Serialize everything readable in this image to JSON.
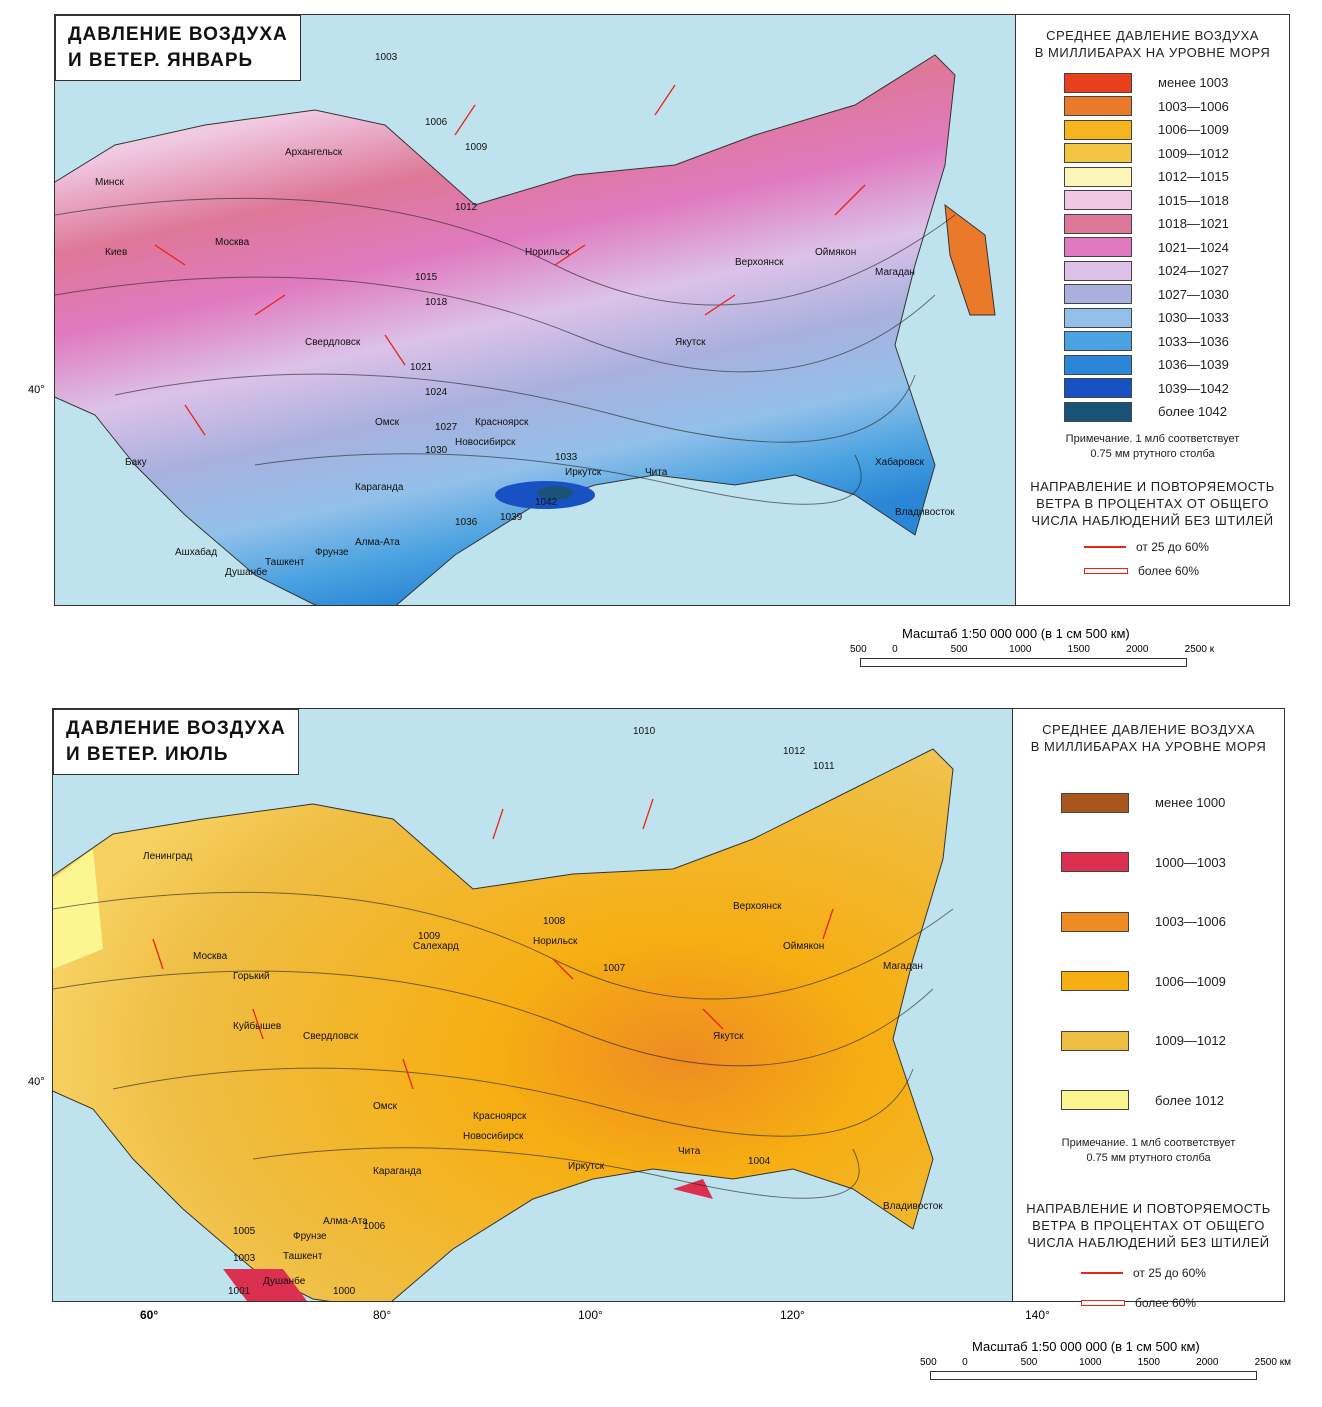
{
  "january": {
    "title_line1": "ДАВЛЕНИЕ ВОЗДУХА",
    "title_line2": "И ВЕТЕР. ЯНВАРЬ",
    "legend_title_line1": "СРЕДНЕЕ ДАВЛЕНИЕ ВОЗДУХА",
    "legend_title_line2": "В МИЛЛИБАРАХ НА УРОВНЕ МОРЯ",
    "legend": [
      {
        "label": "менее 1003",
        "color": "#e8401c"
      },
      {
        "label": "1003—1006",
        "color": "#ea7a2a"
      },
      {
        "label": "1006—1009",
        "color": "#f6b41e"
      },
      {
        "label": "1009—1012",
        "color": "#f2c441"
      },
      {
        "label": "1012—1015",
        "color": "#fbf6b8"
      },
      {
        "label": "1015—1018",
        "color": "#f0c8e2"
      },
      {
        "label": "1018—1021",
        "color": "#de7898"
      },
      {
        "label": "1021—1024",
        "color": "#e07ac0"
      },
      {
        "label": "1024—1027",
        "color": "#dcc2e8"
      },
      {
        "label": "1027—1030",
        "color": "#a9b0de"
      },
      {
        "label": "1030—1033",
        "color": "#92c0ea"
      },
      {
        "label": "1033—1036",
        "color": "#4aa2e0"
      },
      {
        "label": "1036—1039",
        "color": "#2a86d6"
      },
      {
        "label": "1039—1042",
        "color": "#1852c2"
      },
      {
        "label": "более 1042",
        "color": "#1a5278"
      }
    ],
    "note_line1": "Примечание. 1 млб соответствует",
    "note_line2": "0.75 мм ртутного столба",
    "wind_title_line1": "НАПРАВЛЕНИЕ И ПОВТОРЯЕМОСТЬ",
    "wind_title_line2": "ВЕТРА В ПРОЦЕНТАХ ОТ ОБЩЕГО",
    "wind_title_line3": "ЧИСЛА НАБЛЮДЕНИЙ БЕЗ ШТИЛЕЙ",
    "wind": [
      "от 25 до 60%",
      "более 60%"
    ],
    "cities": [
      "Москва",
      "Минск",
      "Киев",
      "Омск",
      "Новосибирск",
      "Красноярск",
      "Иркутск",
      "Чита",
      "Якутск",
      "Верхоянск",
      "Оймякон",
      "Магадан",
      "Хабаровск",
      "Владивосток",
      "Караганда",
      "Ташкент",
      "Фрунзе",
      "Алма-Ата",
      "Свердловск",
      "Архангельск",
      "Норильск",
      "Баку",
      "Ашхабад",
      "Душанбе"
    ],
    "isobars": [
      "1003",
      "1006",
      "1009",
      "1012",
      "1015",
      "1018",
      "1021",
      "1024",
      "1027",
      "1030",
      "1033",
      "1036",
      "1039",
      "1042"
    ],
    "lat_label": "40°",
    "scale": {
      "label": "Масштаб 1:50 000 000 (в 1 см 500 км)",
      "ticks": [
        "500",
        "0",
        "500",
        "1000",
        "1500",
        "2000",
        "2500 к"
      ]
    }
  },
  "july": {
    "title_line1": "ДАВЛЕНИЕ ВОЗДУХА",
    "title_line2": "И ВЕТЕР. ИЮЛЬ",
    "legend_title_line1": "СРЕДНЕЕ ДАВЛЕНИЕ ВОЗДУХА",
    "legend_title_line2": "В МИЛЛИБАРАХ НА УРОВНЕ МОРЯ",
    "legend": [
      {
        "label": "менее 1000",
        "color": "#a9561c"
      },
      {
        "label": "1000—1003",
        "color": "#dc3050"
      },
      {
        "label": "1003—1006",
        "color": "#ee8c22"
      },
      {
        "label": "1006—1009",
        "color": "#f6ae12"
      },
      {
        "label": "1009—1012",
        "color": "#efbe44"
      },
      {
        "label": "более 1012",
        "color": "#fbf690"
      }
    ],
    "note_line1": "Примечание. 1 млб соответствует",
    "note_line2": "0.75 мм ртутного столба",
    "wind_title_line1": "НАПРАВЛЕНИЕ И ПОВТОРЯЕМОСТЬ",
    "wind_title_line2": "ВЕТРА В ПРОЦЕНТАХ ОТ ОБЩЕГО",
    "wind_title_line3": "ЧИСЛА НАБЛЮДЕНИЙ БЕЗ ШТИЛЕЙ",
    "wind": [
      "от 25 до 60%",
      "более 60%"
    ],
    "cities": [
      "Москва",
      "Ленинград",
      "Горький",
      "Куйбышев",
      "Свердловск",
      "Омск",
      "Новосибирск",
      "Красноярск",
      "Иркутск",
      "Чита",
      "Якутск",
      "Оймякон",
      "Магадан",
      "Владивосток",
      "Караганда",
      "Фрунзе",
      "Алма-Ата",
      "Ташкент",
      "Душанбе",
      "Салехард",
      "Норильск",
      "Верхоянск"
    ],
    "isobars": [
      "1000",
      "1001",
      "1003",
      "1004",
      "1005",
      "1006",
      "1007",
      "1008",
      "1009",
      "1010",
      "1011",
      "1012"
    ],
    "lon_labels": [
      "60°",
      "80°",
      "100°",
      "120°",
      "140°"
    ],
    "lat_label": "40°",
    "scale": {
      "label": "Масштаб 1:50 000 000 (в 1 см 500 км)",
      "ticks": [
        "500",
        "0",
        "500",
        "1000",
        "1500",
        "2000",
        "2500 км"
      ]
    }
  }
}
